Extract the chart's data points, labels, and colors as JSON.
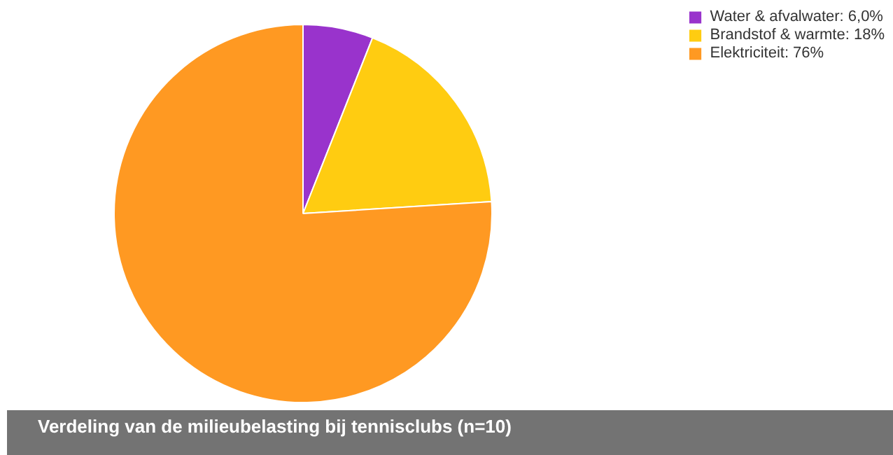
{
  "chart_data": {
    "type": "pie",
    "title": "Verdeling van de milieubelasting bij tennisclubs (n=10)",
    "categories": [
      "Water & afvalwater",
      "Brandstof & warmte",
      "Elektriciteit"
    ],
    "values": [
      6.0,
      18,
      76
    ],
    "value_labels": [
      "6,0%",
      "18%",
      "76%"
    ],
    "colors": [
      "#9933cc",
      "#ffcc11",
      "#ff9922"
    ],
    "legend": "top right"
  }
}
